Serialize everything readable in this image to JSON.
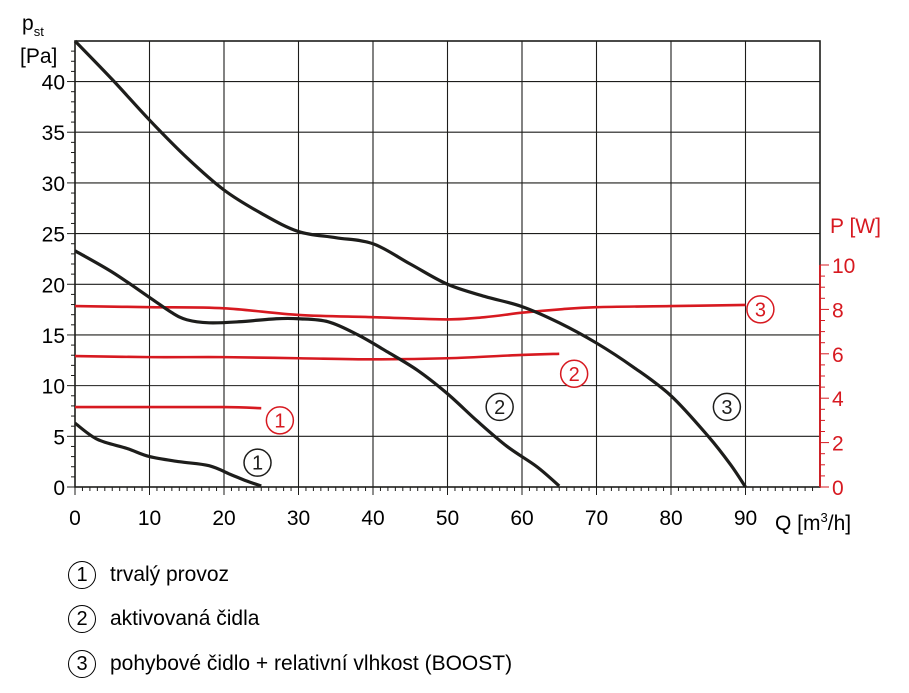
{
  "chart_data": {
    "type": "line",
    "x": {
      "label": "Q [m³/h]",
      "range": [
        0,
        100
      ],
      "ticks": [
        "0",
        "10",
        "20",
        "30",
        "40",
        "50",
        "60",
        "70",
        "80",
        "90"
      ]
    },
    "y_left": {
      "label_main": "p",
      "label_sub": "st",
      "unit": "[Pa]",
      "range": [
        0,
        44
      ],
      "ticks": [
        "0",
        "5",
        "10",
        "15",
        "20",
        "25",
        "30",
        "35",
        "40"
      ]
    },
    "y_right": {
      "label": "P [W]",
      "range": [
        0,
        10
      ],
      "ticks": [
        "0",
        "2",
        "4",
        "6",
        "8",
        "10"
      ],
      "color": "#d71920"
    },
    "grid": true,
    "pressure_series": [
      {
        "name": "1",
        "color": "#1d1d1b",
        "points": [
          [
            0,
            6.3
          ],
          [
            3,
            4.7
          ],
          [
            7,
            3.8
          ],
          [
            10,
            3.0
          ],
          [
            14,
            2.5
          ],
          [
            18,
            2.1
          ],
          [
            21,
            1.2
          ],
          [
            23,
            0.6
          ],
          [
            25,
            0.1
          ]
        ]
      },
      {
        "name": "2",
        "color": "#1d1d1b",
        "points": [
          [
            0,
            23.3
          ],
          [
            5,
            21.2
          ],
          [
            10,
            18.7
          ],
          [
            13,
            17.2
          ],
          [
            15,
            16.5
          ],
          [
            18,
            16.2
          ],
          [
            22,
            16.3
          ],
          [
            27,
            16.6
          ],
          [
            30,
            16.6
          ],
          [
            34,
            16.3
          ],
          [
            38,
            15.0
          ],
          [
            42,
            13.3
          ],
          [
            46,
            11.5
          ],
          [
            50,
            9.2
          ],
          [
            54,
            6.5
          ],
          [
            58,
            4.0
          ],
          [
            62,
            2.0
          ],
          [
            65,
            0.1
          ]
        ]
      },
      {
        "name": "3",
        "color": "#1d1d1b",
        "points": [
          [
            0,
            44
          ],
          [
            5,
            40.2
          ],
          [
            10,
            36.2
          ],
          [
            15,
            32.5
          ],
          [
            20,
            29.3
          ],
          [
            25,
            27.0
          ],
          [
            30,
            25.2
          ],
          [
            35,
            24.6
          ],
          [
            40,
            24.0
          ],
          [
            45,
            22.0
          ],
          [
            50,
            20.0
          ],
          [
            55,
            18.8
          ],
          [
            60,
            17.8
          ],
          [
            65,
            16.2
          ],
          [
            70,
            14.2
          ],
          [
            75,
            11.8
          ],
          [
            80,
            9.0
          ],
          [
            85,
            5.0
          ],
          [
            88,
            2.2
          ],
          [
            90,
            0
          ]
        ]
      }
    ],
    "power_series": [
      {
        "name": "1",
        "color": "#d71920",
        "points": [
          [
            0,
            3.6
          ],
          [
            10,
            3.6
          ],
          [
            20,
            3.6
          ],
          [
            25,
            3.55
          ]
        ]
      },
      {
        "name": "2",
        "color": "#d71920",
        "points": [
          [
            0,
            5.9
          ],
          [
            10,
            5.85
          ],
          [
            20,
            5.85
          ],
          [
            30,
            5.8
          ],
          [
            40,
            5.75
          ],
          [
            50,
            5.8
          ],
          [
            60,
            5.95
          ],
          [
            65,
            6.0
          ]
        ]
      },
      {
        "name": "3",
        "color": "#d71920",
        "points": [
          [
            0,
            8.15
          ],
          [
            10,
            8.1
          ],
          [
            20,
            8.05
          ],
          [
            30,
            7.75
          ],
          [
            40,
            7.65
          ],
          [
            50,
            7.55
          ],
          [
            55,
            7.65
          ],
          [
            60,
            7.85
          ],
          [
            65,
            8.0
          ],
          [
            70,
            8.1
          ],
          [
            80,
            8.15
          ],
          [
            90,
            8.2
          ]
        ]
      }
    ],
    "curve_labels": [
      {
        "id": "1",
        "axis": "left",
        "x": 24.5,
        "y": 2.4,
        "color": "#1d1d1b"
      },
      {
        "id": "2",
        "axis": "left",
        "x": 57,
        "y": 7.9,
        "color": "#1d1d1b"
      },
      {
        "id": "3",
        "axis": "left",
        "x": 87.5,
        "y": 7.9,
        "color": "#1d1d1b"
      },
      {
        "id": "1",
        "axis": "right",
        "x": 27.5,
        "y": 3.0,
        "color": "#d71920"
      },
      {
        "id": "2",
        "axis": "right",
        "x": 67,
        "y": 5.1,
        "color": "#d71920"
      },
      {
        "id": "3",
        "axis": "right",
        "x": 92,
        "y": 8.0,
        "color": "#d71920"
      }
    ]
  },
  "legend": [
    {
      "num": "1",
      "label": "trvalý provoz"
    },
    {
      "num": "2",
      "label": "aktivovaná čidla"
    },
    {
      "num": "3",
      "label": "pohybové čidlo + relativní vlhkost (BOOST)"
    }
  ]
}
